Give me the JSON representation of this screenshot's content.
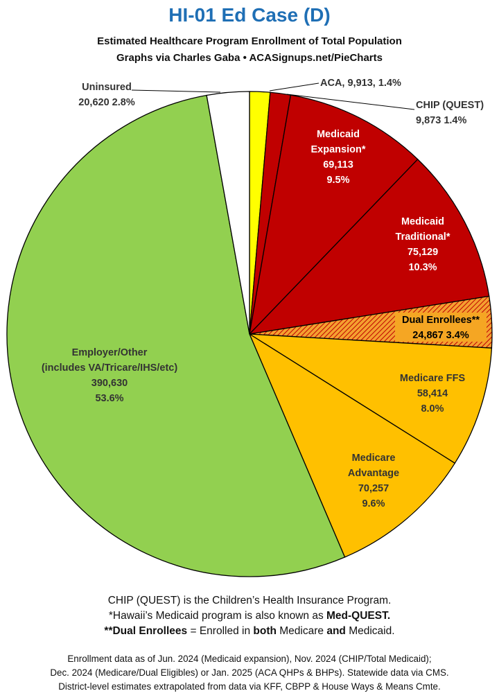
{
  "title": "HI-01 Ed Case (D)",
  "subtitle1": "Estimated Healthcare Program Enrollment of Total Population",
  "subtitle2": "Graphs via Charles Gaba  •  ACASignups.net/PieCharts",
  "chart_data": {
    "type": "pie",
    "title": "HI-01 Ed Case (D)",
    "slices": [
      {
        "label_lines": [
          "ACA, 9,913, 1.4%"
        ],
        "value": 9913,
        "percent": "1.4%",
        "color": "#ffff00"
      },
      {
        "label_lines": [
          "CHIP (QUEST)",
          "9,873 1.4%"
        ],
        "value": 9873,
        "percent": "1.4%",
        "color": "#c00000"
      },
      {
        "label_lines": [
          "Medicaid",
          "Expansion*",
          "69,113",
          "9.5%"
        ],
        "value": 69113,
        "percent": "9.5%",
        "color": "#c00000"
      },
      {
        "label_lines": [
          "Medicaid",
          "Traditional*",
          "75,129",
          "10.3%"
        ],
        "value": 75129,
        "percent": "10.3%",
        "color": "#c00000"
      },
      {
        "label_lines": [
          "Dual Enrollees**",
          "24,867 3.4%"
        ],
        "value": 24867,
        "percent": "3.4%",
        "color": "#f0a020",
        "pattern": "hatch"
      },
      {
        "label_lines": [
          "Medicare FFS",
          "58,414",
          "8.0%"
        ],
        "value": 58414,
        "percent": "8.0%",
        "color": "#ffc000"
      },
      {
        "label_lines": [
          "Medicare",
          "Advantage",
          "70,257",
          "9.6%"
        ],
        "value": 70257,
        "percent": "9.6%",
        "color": "#ffc000"
      },
      {
        "label_lines": [
          "Employer/Other",
          "(includes VA/Tricare/IHS/etc)",
          "390,630",
          "53.6%"
        ],
        "value": 390630,
        "percent": "53.6%",
        "color": "#92d050"
      },
      {
        "label_lines": [
          "Uninsured",
          "20,620 2.8%"
        ],
        "value": 20620,
        "percent": "2.8%",
        "color": "#ffffff"
      }
    ]
  },
  "notes": {
    "line1": "CHIP (QUEST) is the Children’s Health Insurance Program.",
    "line2_a": "*Hawaii’s Medicaid program is also known as ",
    "line2_b": "Med-QUEST.",
    "line3_a": "**Dual Enrollees",
    "line3_b": " = Enrolled in ",
    "line3_c": "both",
    "line3_d": " Medicare ",
    "line3_e": "and",
    "line3_f": " Medicaid."
  },
  "source": {
    "line1": "Enrollment data as of Jun. 2024 (Medicaid expansion), Nov. 2024 (CHIP/Total Medicaid);",
    "line2": "Dec. 2024 (Medicare/Dual Eligibles) or Jan. 2025 (ACA QHPs & BHPs). Statewide data via CMS.",
    "line3": "District-level estimates extrapolated from data via KFF, CBPP & House Ways & Means Cmte."
  }
}
